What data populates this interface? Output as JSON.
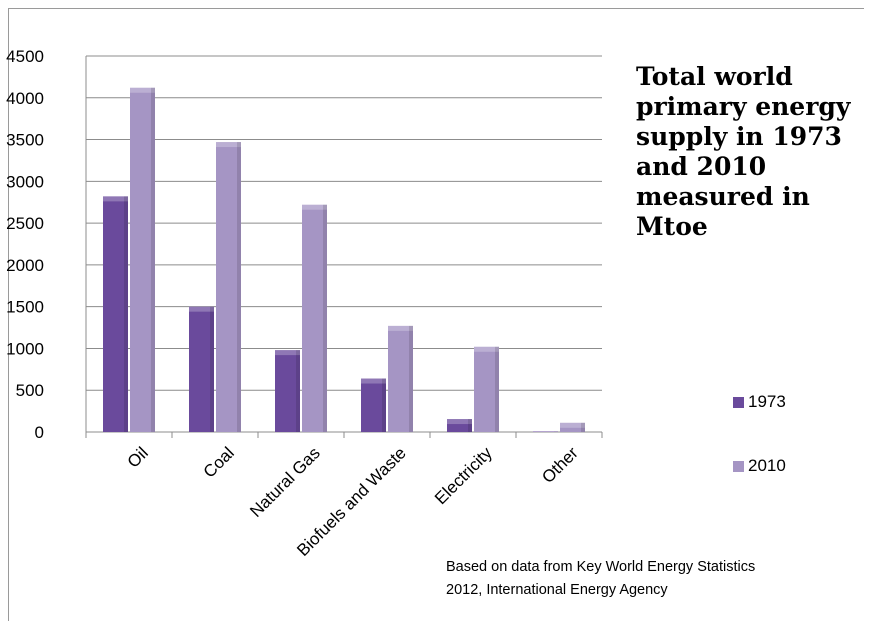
{
  "chart_data": {
    "type": "bar",
    "title": "Total world\nprimary energy\nsupply in 1973\nand 2010\nmeasured in\nMtoe",
    "categories": [
      "Oil",
      "Coal",
      "Natural Gas",
      "Biofuels and Waste",
      "Electricity",
      "Other"
    ],
    "series": [
      {
        "name": "1973",
        "values": [
          2820,
          1500,
          980,
          640,
          155,
          6
        ],
        "color": "#6a4a9c"
      },
      {
        "name": "2010",
        "values": [
          4120,
          3470,
          2720,
          1270,
          1020,
          110
        ],
        "color": "#a595c4"
      }
    ],
    "yticks": [
      0,
      500,
      1000,
      1500,
      2000,
      2500,
      3000,
      3500,
      4000,
      4500
    ],
    "ylim": [
      0,
      4500
    ],
    "xlabel": "",
    "ylabel": "",
    "grid": true,
    "legend_position": "right"
  },
  "source_note": "Based on data from Key World Energy Statistics\n2012, International Energy Agency"
}
